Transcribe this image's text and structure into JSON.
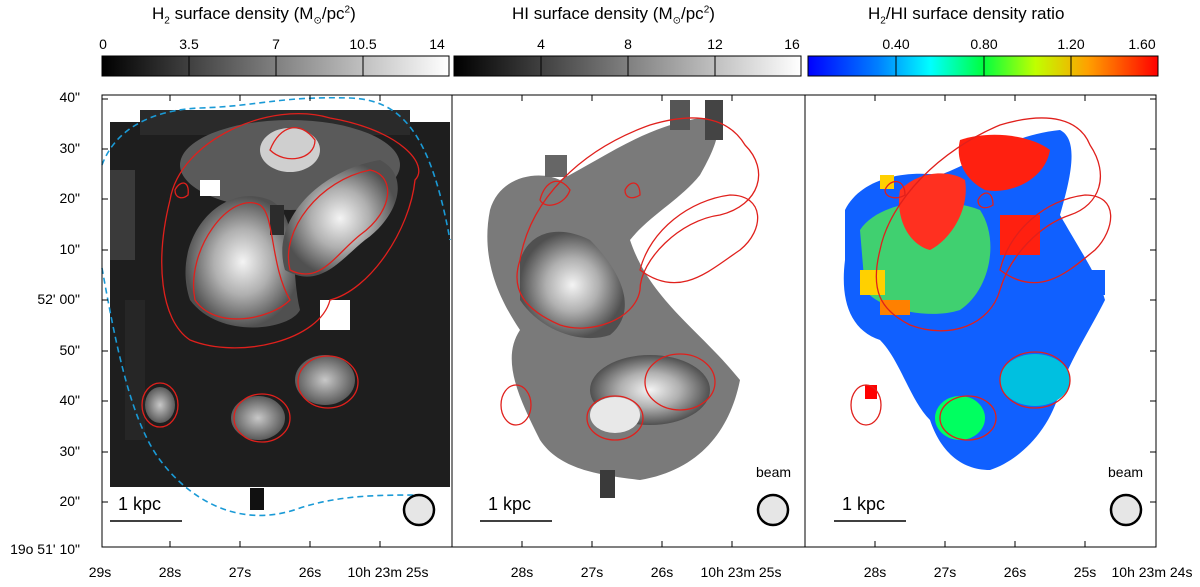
{
  "panels": [
    {
      "title": "H2 surface density (M⊙/pc2)",
      "title_parts": {
        "a": "H",
        "sub": "2",
        "b": " surface density (M",
        "sun": "⊙",
        "c": "/pc",
        "sup": "2",
        "d": ")"
      },
      "colorbar": {
        "cmap": "gray",
        "min": 0,
        "max": 14,
        "ticks": [
          "0",
          "3.5",
          "7",
          "10.5",
          "14"
        ]
      },
      "scale_label": "1 kpc",
      "beam_label": ""
    },
    {
      "title": "HI surface density (M⊙/pc2)",
      "title_parts": {
        "a": "HI",
        "sub": "",
        "b": " surface density (M",
        "sun": "⊙",
        "c": "/pc",
        "sup": "2",
        "d": ")"
      },
      "colorbar": {
        "cmap": "gray",
        "min": 0,
        "max": 16,
        "ticks": [
          "4",
          "8",
          "12",
          "16"
        ]
      },
      "scale_label": "1 kpc",
      "beam_label": "beam"
    },
    {
      "title": "H2/HI surface density ratio",
      "title_parts": {
        "a": "H",
        "sub": "2",
        "b": "/HI surface density ratio"
      },
      "colorbar": {
        "cmap": "jet",
        "min": 0,
        "max": 1.6,
        "ticks": [
          "0.40",
          "0.80",
          "1.20",
          "1.60"
        ]
      },
      "scale_label": "1 kpc",
      "beam_label": "beam"
    }
  ],
  "y_axis": {
    "ticks": [
      "40\"",
      "30\"",
      "20\"",
      "10\"",
      "52' 00\"",
      "50\"",
      "40\"",
      "30\"",
      "20\"",
      "19o 51' 10\""
    ]
  },
  "x_axes": [
    {
      "ticks": [
        "29s",
        "28s",
        "27s",
        "26s",
        "10h 23m 25s"
      ]
    },
    {
      "ticks": [
        "28s",
        "27s",
        "26s",
        "10h 23m 25s"
      ]
    },
    {
      "ticks": [
        "28s",
        "27s",
        "26s",
        "25s",
        "10h 23m 24s"
      ]
    }
  ],
  "colors": {
    "contour": "#e0201c",
    "dashed": "#1a9ad6",
    "beam_fill": "#e6e6e6"
  }
}
